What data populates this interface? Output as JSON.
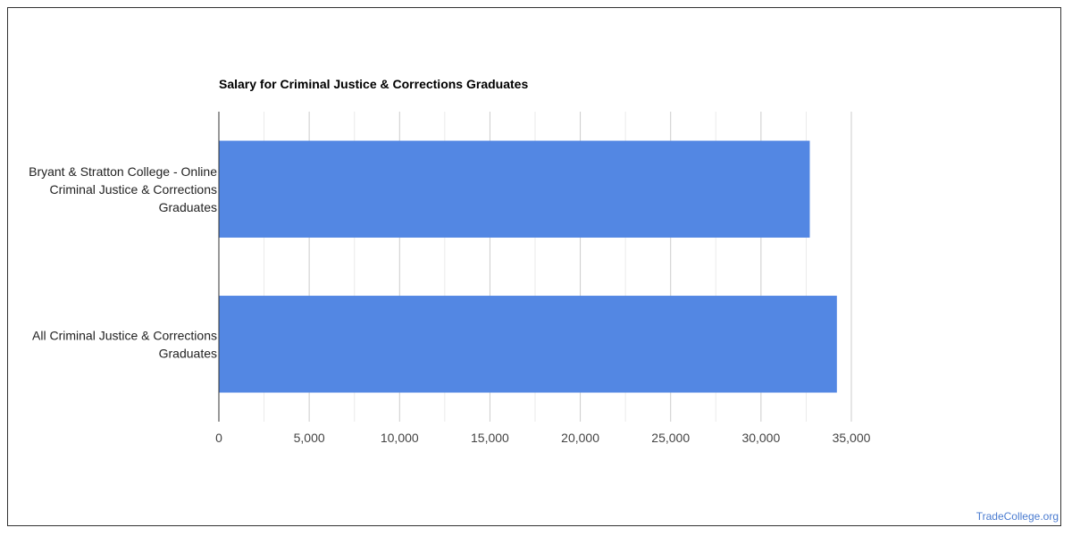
{
  "chart_data": {
    "type": "bar",
    "orientation": "horizontal",
    "title": "Salary for Criminal Justice & Corrections Graduates",
    "categories": [
      [
        "Bryant & Stratton College - Online",
        "Criminal Justice & Corrections",
        "Graduates"
      ],
      [
        "All Criminal Justice & Corrections",
        "Graduates"
      ]
    ],
    "values": [
      32700,
      34200
    ],
    "xlim": [
      0,
      35000
    ],
    "xticks": [
      0,
      5000,
      10000,
      15000,
      20000,
      25000,
      30000,
      35000
    ],
    "xtick_labels": [
      "0",
      "5,000",
      "10,000",
      "15,000",
      "20,000",
      "25,000",
      "30,000",
      "35,000"
    ],
    "xlabel": "",
    "ylabel": "",
    "grid": true,
    "bar_color": "#5387e3"
  },
  "watermark": "TradeCollege.org"
}
